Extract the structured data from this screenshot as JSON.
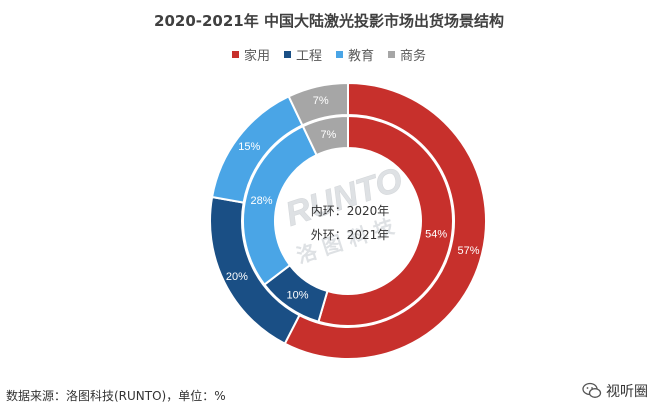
{
  "chart_data": {
    "type": "pie",
    "title": "2020-2021年 中国大陆激光投影市场出货场景结构",
    "categories": [
      "家用",
      "工程",
      "教育",
      "商务"
    ],
    "colors": [
      "#c7302c",
      "#1a4f85",
      "#4aa5e6",
      "#a6a6a6"
    ],
    "series": [
      {
        "name": "内环：2020年",
        "ring": "inner",
        "values": [
          54,
          10,
          28,
          7
        ]
      },
      {
        "name": "外环：2021年",
        "ring": "outer",
        "values": [
          57,
          20,
          15,
          7
        ]
      }
    ],
    "center_labels": [
      "内环：2020年",
      "外环：2021年"
    ],
    "legend": "top-center",
    "unit": "%"
  },
  "watermark": "RUNTO 洛图科技",
  "source": "数据来源：洛图科技(RUNTO)，单位：%",
  "credit": {
    "text": "视听圈",
    "icon": "wechat-icon"
  }
}
